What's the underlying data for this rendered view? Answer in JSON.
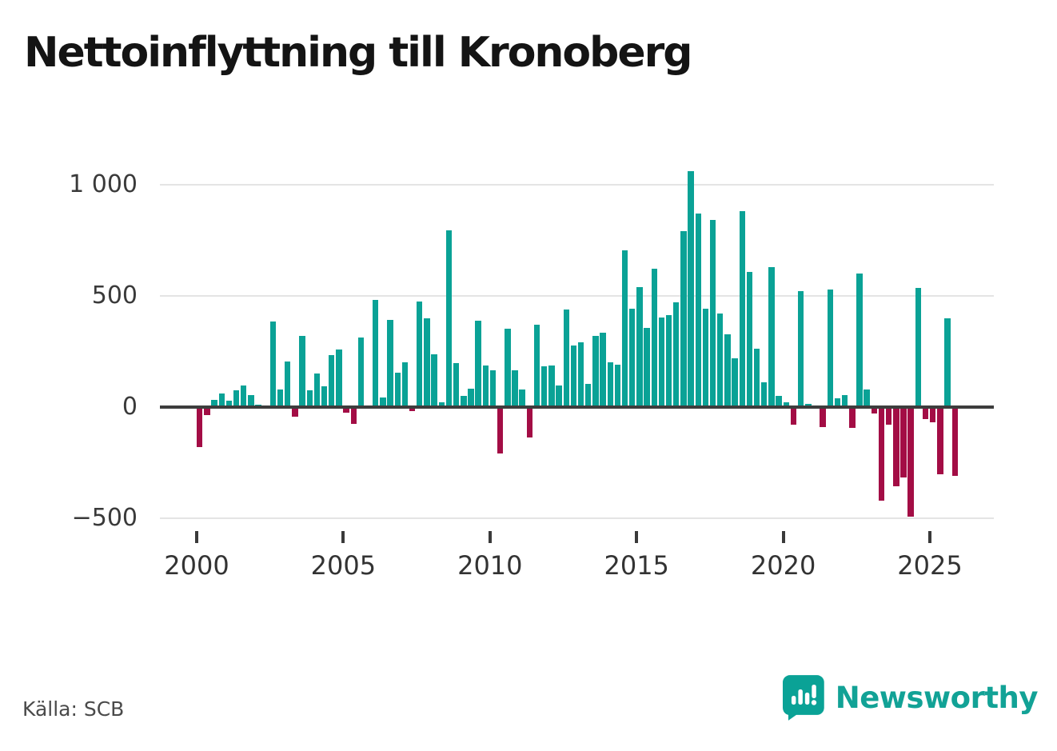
{
  "title": "Nettoinflyttning till Kronoberg",
  "source": "Källa: SCB",
  "brand": {
    "name": "Newsworthy",
    "color": "#12a296"
  },
  "colors": {
    "positive": "#0aa296",
    "negative": "#a30d45",
    "grid": "#e4e4e4",
    "zero_line": "#3d3d3d",
    "axis_text": "#333333"
  },
  "chart_data": {
    "type": "bar",
    "title": "Nettoinflyttning till Kronoberg",
    "xlabel": "",
    "ylabel": "",
    "grid": "horizontal",
    "legend": "none",
    "ylim": [
      -560,
      1090
    ],
    "y_ticks": [
      1000,
      500,
      0,
      -500
    ],
    "y_tick_labels": [
      "1 000",
      "500",
      "0",
      "−500"
    ],
    "x_tick_years": [
      2000,
      2005,
      2010,
      2015,
      2020,
      2025
    ],
    "x_tick_labels": [
      "2000",
      "2005",
      "2010",
      "2015",
      "2020",
      "2025"
    ],
    "categories": [
      "2000 Q1",
      "2000 Q2",
      "2000 Q3",
      "2000 Q4",
      "2001 Q1",
      "2001 Q2",
      "2001 Q3",
      "2001 Q4",
      "2002 Q1",
      "2002 Q2",
      "2002 Q3",
      "2002 Q4",
      "2003 Q1",
      "2003 Q2",
      "2003 Q3",
      "2003 Q4",
      "2004 Q1",
      "2004 Q2",
      "2004 Q3",
      "2004 Q4",
      "2005 Q1",
      "2005 Q2",
      "2005 Q3",
      "2005 Q4",
      "2006 Q1",
      "2006 Q2",
      "2006 Q3",
      "2006 Q4",
      "2007 Q1",
      "2007 Q2",
      "2007 Q3",
      "2007 Q4",
      "2008 Q1",
      "2008 Q2",
      "2008 Q3",
      "2008 Q4",
      "2009 Q1",
      "2009 Q2",
      "2009 Q3",
      "2009 Q4",
      "2010 Q1",
      "2010 Q2",
      "2010 Q3",
      "2010 Q4",
      "2011 Q1",
      "2011 Q2",
      "2011 Q3",
      "2011 Q4",
      "2012 Q1",
      "2012 Q2",
      "2012 Q3",
      "2012 Q4",
      "2013 Q1",
      "2013 Q2",
      "2013 Q3",
      "2013 Q4",
      "2014 Q1",
      "2014 Q2",
      "2014 Q3",
      "2014 Q4",
      "2015 Q1",
      "2015 Q2",
      "2015 Q3",
      "2015 Q4",
      "2016 Q1",
      "2016 Q2",
      "2016 Q3",
      "2016 Q4",
      "2017 Q1",
      "2017 Q2",
      "2017 Q3",
      "2017 Q4",
      "2018 Q1",
      "2018 Q2",
      "2018 Q3",
      "2018 Q4",
      "2019 Q1",
      "2019 Q2",
      "2019 Q3",
      "2019 Q4",
      "2020 Q1",
      "2020 Q2",
      "2020 Q3",
      "2020 Q4",
      "2021 Q1",
      "2021 Q2",
      "2021 Q3",
      "2021 Q4",
      "2022 Q1",
      "2022 Q2",
      "2022 Q3",
      "2022 Q4",
      "2023 Q1",
      "2023 Q2",
      "2023 Q3",
      "2023 Q4",
      "2024 Q1",
      "2024 Q2",
      "2024 Q3",
      "2024 Q4",
      "2025 Q1",
      "2025 Q2",
      "2025 Q3",
      "2025 Q4"
    ],
    "values": [
      -172,
      -30,
      31,
      61,
      30,
      75,
      97,
      55,
      10,
      0,
      384,
      80,
      206,
      -36,
      319,
      74,
      151,
      92,
      234,
      260,
      -17,
      -68,
      312,
      6,
      481,
      43,
      392,
      155,
      200,
      -10,
      474,
      398,
      236,
      20,
      796,
      198,
      50,
      83,
      390,
      186,
      164,
      -200,
      354,
      164,
      78,
      -130,
      370,
      182,
      188,
      98,
      440,
      278,
      290,
      105,
      320,
      336,
      201,
      189,
      705,
      444,
      540,
      357,
      623,
      404,
      414,
      470,
      792,
      1060,
      870,
      444,
      843,
      420,
      327,
      219,
      882,
      607,
      264,
      112,
      631,
      50,
      22,
      -72,
      520,
      14,
      0,
      -81,
      527,
      41,
      55,
      -87,
      602,
      80,
      -20,
      -415,
      -71,
      -350,
      -308,
      -486,
      537,
      -45,
      -60,
      -296,
      398,
      -302
    ]
  }
}
